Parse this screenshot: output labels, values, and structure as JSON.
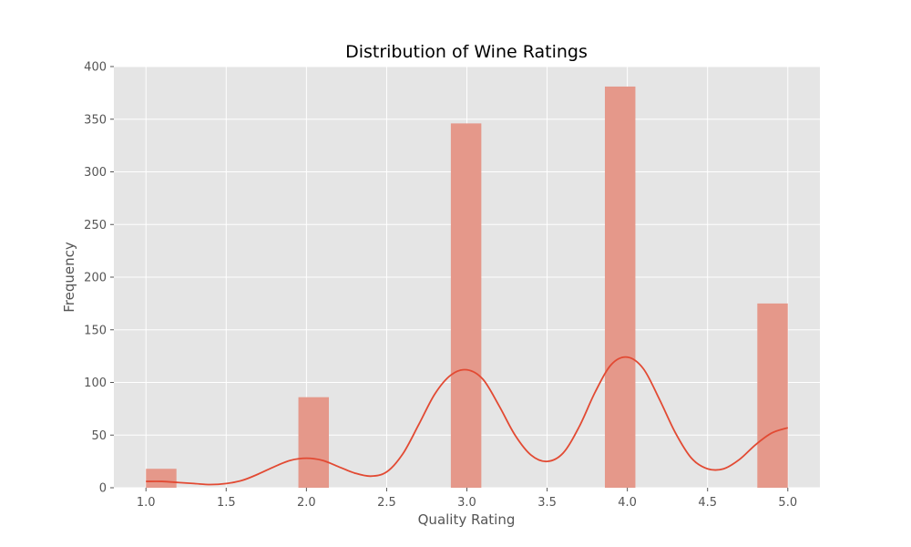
{
  "chart_data": {
    "type": "bar",
    "title": "Distribution of Wine Ratings",
    "xlabel": "Quality Rating",
    "ylabel": "Frequency",
    "xlim": [
      0.8,
      5.2
    ],
    "ylim": [
      0,
      400
    ],
    "x_ticks": [
      "1.0",
      "1.5",
      "2.0",
      "2.5",
      "3.0",
      "3.5",
      "4.0",
      "4.5",
      "5.0"
    ],
    "y_ticks": [
      "0",
      "50",
      "100",
      "150",
      "200",
      "250",
      "300",
      "350",
      "400"
    ],
    "grid": true,
    "bins": [
      {
        "x0": 1.0,
        "x1": 1.19,
        "count": 18
      },
      {
        "x0": 1.95,
        "x1": 2.14,
        "count": 86
      },
      {
        "x0": 2.9,
        "x1": 3.09,
        "count": 346
      },
      {
        "x0": 3.86,
        "x1": 4.05,
        "count": 381
      },
      {
        "x0": 4.81,
        "x1": 5.0,
        "count": 175
      }
    ],
    "kde": {
      "x": [
        1.0,
        1.1,
        1.2,
        1.3,
        1.4,
        1.5,
        1.6,
        1.7,
        1.8,
        1.9,
        2.0,
        2.1,
        2.2,
        2.3,
        2.4,
        2.5,
        2.6,
        2.7,
        2.8,
        2.9,
        3.0,
        3.1,
        3.2,
        3.3,
        3.4,
        3.5,
        3.6,
        3.7,
        3.8,
        3.9,
        4.0,
        4.1,
        4.2,
        4.3,
        4.4,
        4.5,
        4.6,
        4.7,
        4.8,
        4.9,
        5.0
      ],
      "y": [
        6,
        6,
        5,
        4,
        3,
        4,
        7,
        13,
        20,
        26,
        28,
        26,
        20,
        14,
        11,
        15,
        32,
        60,
        89,
        107,
        112,
        103,
        78,
        50,
        31,
        25,
        33,
        58,
        91,
        117,
        124,
        113,
        84,
        52,
        28,
        18,
        18,
        27,
        41,
        52,
        57
      ]
    },
    "colors": {
      "bar": "#e5988a",
      "line": "#e24a33",
      "plot_bg": "#e5e5e5",
      "grid": "#ffffff"
    }
  }
}
